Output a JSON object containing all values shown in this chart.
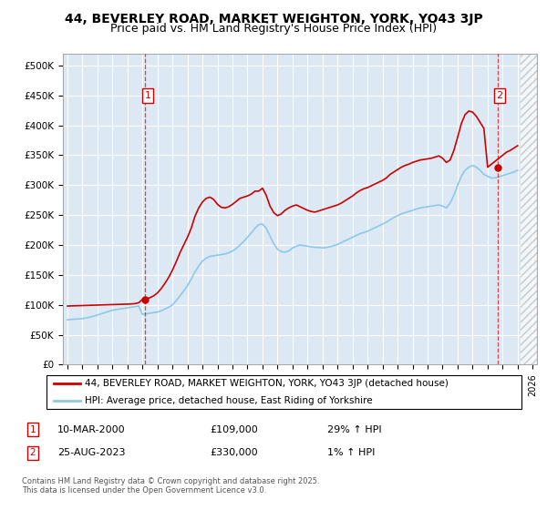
{
  "title": "44, BEVERLEY ROAD, MARKET WEIGHTON, YORK, YO43 3JP",
  "subtitle": "Price paid vs. HM Land Registry's House Price Index (HPI)",
  "ylabel_ticks": [
    "£0",
    "£50K",
    "£100K",
    "£150K",
    "£200K",
    "£250K",
    "£300K",
    "£350K",
    "£400K",
    "£450K",
    "£500K"
  ],
  "ytick_values": [
    0,
    50000,
    100000,
    150000,
    200000,
    250000,
    300000,
    350000,
    400000,
    450000,
    500000
  ],
  "ylim": [
    0,
    520000
  ],
  "xlim_start": 1994.7,
  "xlim_end": 2026.3,
  "background_color": "#dce9f5",
  "plot_bg_color": "#dce9f5",
  "grid_color": "#ffffff",
  "hpi_line_color": "#8ec8e8",
  "price_line_color": "#cc0000",
  "sale1_date_x": 2000.19,
  "sale1_price": 109000,
  "sale2_date_x": 2023.65,
  "sale2_price": 330000,
  "sale1_label": "1",
  "sale2_label": "2",
  "legend_line1": "44, BEVERLEY ROAD, MARKET WEIGHTON, YORK, YO43 3JP (detached house)",
  "legend_line2": "HPI: Average price, detached house, East Riding of Yorkshire",
  "footer": "Contains HM Land Registry data © Crown copyright and database right 2025.\nThis data is licensed under the Open Government Licence v3.0.",
  "hpi_data_x": [
    1995.0,
    1995.25,
    1995.5,
    1995.75,
    1996.0,
    1996.25,
    1996.5,
    1996.75,
    1997.0,
    1997.25,
    1997.5,
    1997.75,
    1998.0,
    1998.25,
    1998.5,
    1998.75,
    1999.0,
    1999.25,
    1999.5,
    1999.75,
    2000.0,
    2000.25,
    2000.5,
    2000.75,
    2001.0,
    2001.25,
    2001.5,
    2001.75,
    2002.0,
    2002.25,
    2002.5,
    2002.75,
    2003.0,
    2003.25,
    2003.5,
    2003.75,
    2004.0,
    2004.25,
    2004.5,
    2004.75,
    2005.0,
    2005.25,
    2005.5,
    2005.75,
    2006.0,
    2006.25,
    2006.5,
    2006.75,
    2007.0,
    2007.25,
    2007.5,
    2007.75,
    2008.0,
    2008.25,
    2008.5,
    2008.75,
    2009.0,
    2009.25,
    2009.5,
    2009.75,
    2010.0,
    2010.25,
    2010.5,
    2010.75,
    2011.0,
    2011.25,
    2011.5,
    2011.75,
    2012.0,
    2012.25,
    2012.5,
    2012.75,
    2013.0,
    2013.25,
    2013.5,
    2013.75,
    2014.0,
    2014.25,
    2014.5,
    2014.75,
    2015.0,
    2015.25,
    2015.5,
    2015.75,
    2016.0,
    2016.25,
    2016.5,
    2016.75,
    2017.0,
    2017.25,
    2017.5,
    2017.75,
    2018.0,
    2018.25,
    2018.5,
    2018.75,
    2019.0,
    2019.25,
    2019.5,
    2019.75,
    2020.0,
    2020.25,
    2020.5,
    2020.75,
    2021.0,
    2021.25,
    2021.5,
    2021.75,
    2022.0,
    2022.25,
    2022.5,
    2022.75,
    2023.0,
    2023.25,
    2023.5,
    2023.75,
    2024.0,
    2024.25,
    2024.5,
    2024.75,
    2025.0
  ],
  "hpi_data_y": [
    75000,
    75500,
    76000,
    76500,
    77000,
    78000,
    79500,
    81000,
    83000,
    85000,
    87000,
    89000,
    91000,
    92000,
    93000,
    94000,
    95000,
    96000,
    97000,
    98000,
    84000,
    85000,
    86000,
    87000,
    88000,
    90000,
    93000,
    96000,
    100000,
    107000,
    115000,
    123000,
    132000,
    143000,
    155000,
    165000,
    173000,
    178000,
    181000,
    182000,
    183000,
    184000,
    185000,
    187000,
    190000,
    194000,
    200000,
    206000,
    213000,
    220000,
    228000,
    234000,
    235000,
    228000,
    215000,
    202000,
    193000,
    189000,
    188000,
    190000,
    195000,
    198000,
    200000,
    199000,
    198000,
    197000,
    196000,
    196000,
    195000,
    196000,
    197000,
    199000,
    201000,
    204000,
    207000,
    210000,
    213000,
    216000,
    219000,
    221000,
    223000,
    226000,
    229000,
    232000,
    235000,
    238000,
    242000,
    246000,
    249000,
    252000,
    254000,
    256000,
    258000,
    260000,
    262000,
    263000,
    264000,
    265000,
    266000,
    267000,
    265000,
    262000,
    270000,
    283000,
    300000,
    315000,
    325000,
    330000,
    333000,
    330000,
    325000,
    318000,
    315000,
    312000,
    312000,
    314000,
    316000,
    318000,
    320000,
    322000,
    325000
  ],
  "price_data_x": [
    1995.0,
    1995.25,
    1995.5,
    1995.75,
    1996.0,
    1996.25,
    1996.5,
    1996.75,
    1997.0,
    1997.25,
    1997.5,
    1997.75,
    1998.0,
    1998.25,
    1998.5,
    1998.75,
    1999.0,
    1999.25,
    1999.5,
    1999.75,
    2000.0,
    2000.25,
    2000.5,
    2000.75,
    2001.0,
    2001.25,
    2001.5,
    2001.75,
    2002.0,
    2002.25,
    2002.5,
    2002.75,
    2003.0,
    2003.25,
    2003.5,
    2003.75,
    2004.0,
    2004.25,
    2004.5,
    2004.75,
    2005.0,
    2005.25,
    2005.5,
    2005.75,
    2006.0,
    2006.25,
    2006.5,
    2006.75,
    2007.0,
    2007.25,
    2007.5,
    2007.75,
    2008.0,
    2008.25,
    2008.5,
    2008.75,
    2009.0,
    2009.25,
    2009.5,
    2009.75,
    2010.0,
    2010.25,
    2010.5,
    2010.75,
    2011.0,
    2011.25,
    2011.5,
    2011.75,
    2012.0,
    2012.25,
    2012.5,
    2012.75,
    2013.0,
    2013.25,
    2013.5,
    2013.75,
    2014.0,
    2014.25,
    2014.5,
    2014.75,
    2015.0,
    2015.25,
    2015.5,
    2015.75,
    2016.0,
    2016.25,
    2016.5,
    2016.75,
    2017.0,
    2017.25,
    2017.5,
    2017.75,
    2018.0,
    2018.25,
    2018.5,
    2018.75,
    2019.0,
    2019.25,
    2019.5,
    2019.75,
    2020.0,
    2020.25,
    2020.5,
    2020.75,
    2021.0,
    2021.25,
    2021.5,
    2021.75,
    2022.0,
    2022.25,
    2022.5,
    2022.75,
    2023.0,
    2023.25,
    2023.5,
    2023.75,
    2024.0,
    2024.25,
    2024.5,
    2024.75,
    2025.0
  ],
  "price_data_y": [
    98000,
    98200,
    98400,
    98600,
    98800,
    99000,
    99200,
    99400,
    99600,
    99800,
    100000,
    100200,
    100400,
    100600,
    100800,
    101000,
    101200,
    101500,
    102000,
    103500,
    109000,
    110000,
    112000,
    115000,
    120000,
    127000,
    136000,
    146000,
    158000,
    172000,
    187000,
    200000,
    213000,
    228000,
    248000,
    262000,
    272000,
    278000,
    280000,
    276000,
    268000,
    263000,
    262000,
    264000,
    268000,
    273000,
    278000,
    280000,
    282000,
    285000,
    290000,
    290000,
    295000,
    283000,
    265000,
    254000,
    249000,
    252000,
    258000,
    262000,
    265000,
    267000,
    264000,
    261000,
    258000,
    256000,
    255000,
    257000,
    259000,
    261000,
    263000,
    265000,
    267000,
    270000,
    274000,
    278000,
    282000,
    287000,
    291000,
    294000,
    296000,
    299000,
    302000,
    305000,
    308000,
    312000,
    318000,
    322000,
    326000,
    330000,
    333000,
    335000,
    338000,
    340000,
    342000,
    343000,
    344000,
    345000,
    347000,
    349000,
    345000,
    338000,
    342000,
    358000,
    380000,
    403000,
    418000,
    424000,
    422000,
    415000,
    405000,
    395000,
    330000,
    335000,
    340000,
    345000,
    350000,
    355000,
    358000,
    362000,
    366000
  ]
}
